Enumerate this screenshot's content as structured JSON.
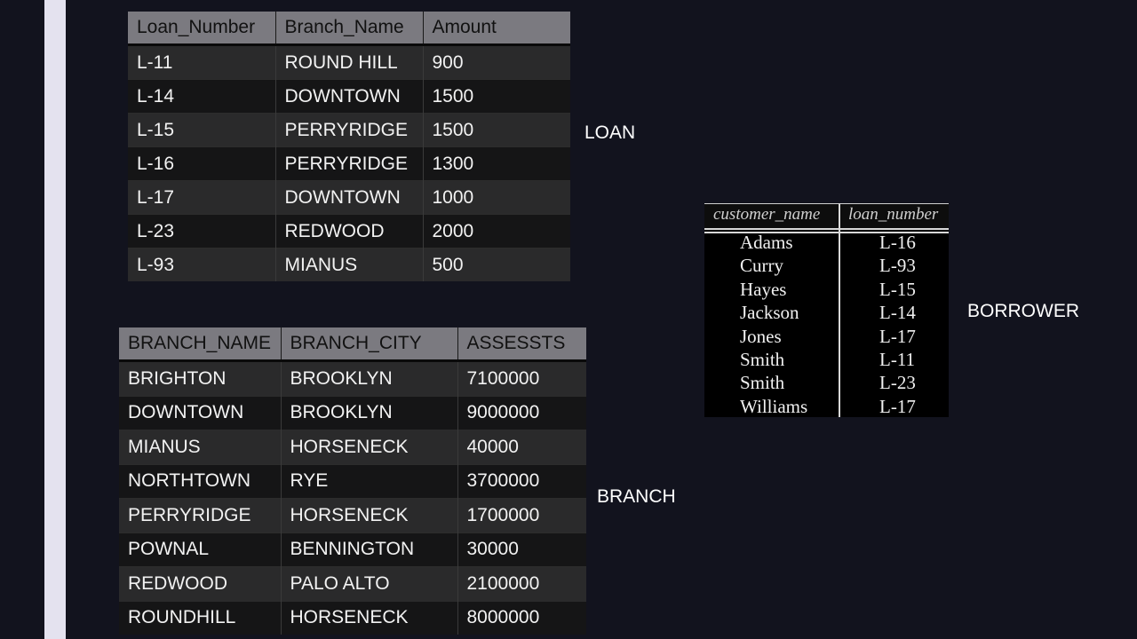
{
  "loan": {
    "label": "LOAN",
    "headers": [
      "Loan_Number",
      "Branch_Name",
      "Amount"
    ],
    "rows": [
      [
        "L-11",
        "ROUND HILL",
        "900"
      ],
      [
        "L-14",
        "DOWNTOWN",
        "1500"
      ],
      [
        "L-15",
        "PERRYRIDGE",
        "1500"
      ],
      [
        "L-16",
        "PERRYRIDGE",
        "1300"
      ],
      [
        "L-17",
        "DOWNTOWN",
        "1000"
      ],
      [
        "L-23",
        "REDWOOD",
        "2000"
      ],
      [
        "L-93",
        "MIANUS",
        "500"
      ]
    ]
  },
  "branch": {
    "label": "BRANCH",
    "headers": [
      "BRANCH_NAME",
      "BRANCH_CITY",
      "ASSESSTS"
    ],
    "rows": [
      [
        "BRIGHTON",
        "BROOKLYN",
        "7100000"
      ],
      [
        "DOWNTOWN",
        "BROOKLYN",
        "9000000"
      ],
      [
        "MIANUS",
        "HORSENECK",
        "40000"
      ],
      [
        "NORTHTOWN",
        "RYE",
        "3700000"
      ],
      [
        "PERRYRIDGE",
        "HORSENECK",
        "1700000"
      ],
      [
        "POWNAL",
        "BENNINGTON",
        "30000"
      ],
      [
        "REDWOOD",
        "PALO ALTO",
        "2100000"
      ],
      [
        "ROUNDHILL",
        "HORSENECK",
        "8000000"
      ]
    ]
  },
  "borrower": {
    "label": "BORROWER",
    "headers": [
      "customer_name",
      "loan_number"
    ],
    "rows": [
      [
        "Adams",
        "L-16"
      ],
      [
        "Curry",
        "L-93"
      ],
      [
        "Hayes",
        "L-15"
      ],
      [
        "Jackson",
        "L-14"
      ],
      [
        "Jones",
        "L-17"
      ],
      [
        "Smith",
        "L-11"
      ],
      [
        "Smith",
        "L-23"
      ],
      [
        "Williams",
        "L-17"
      ]
    ]
  }
}
